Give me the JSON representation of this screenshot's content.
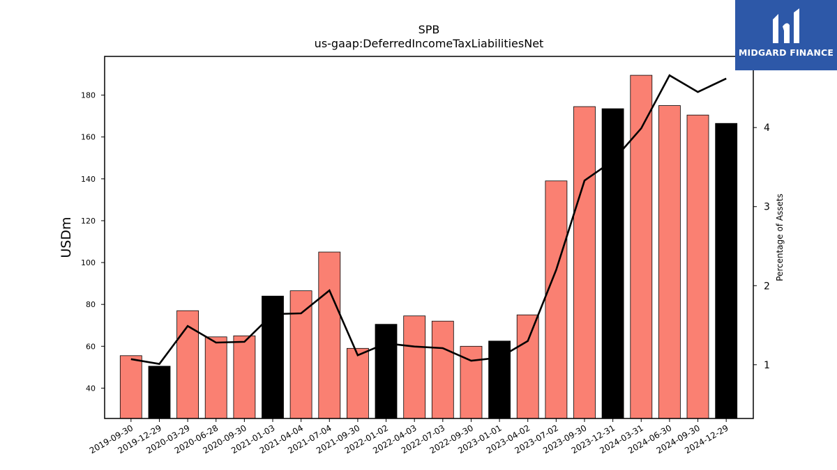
{
  "brand": {
    "name": "MIDGARD FINANCE",
    "color": "#2d58a8"
  },
  "chart_data": {
    "type": "bar",
    "title": "SPB",
    "subtitle": "us-gaap:DeferredIncomeTaxLiabilitiesNet",
    "ylabel": "USDm",
    "y2label": "Percentage of Assets",
    "ylim": [
      25.5,
      198.5
    ],
    "y2lim": [
      0.32,
      4.9
    ],
    "yticks": [
      40,
      60,
      80,
      100,
      120,
      140,
      160,
      180
    ],
    "y2ticks": [
      1,
      2,
      3,
      4
    ],
    "grid": false,
    "colors": {
      "default": "#fa8072",
      "highlight": "#000000",
      "line": "#000000"
    },
    "categories": [
      "2019-09-30",
      "2019-12-29",
      "2020-03-29",
      "2020-06-28",
      "2020-09-30",
      "2021-01-03",
      "2021-04-04",
      "2021-07-04",
      "2021-09-30",
      "2022-01-02",
      "2022-04-03",
      "2022-07-03",
      "2022-09-30",
      "2023-01-01",
      "2023-04-02",
      "2023-07-02",
      "2023-09-30",
      "2023-12-31",
      "2024-03-31",
      "2024-06-30",
      "2024-09-30",
      "2024-12-29"
    ],
    "values": [
      55.5,
      50.5,
      77,
      64.5,
      65,
      84,
      86.5,
      105,
      59,
      70.5,
      74.5,
      72,
      60,
      62.5,
      75,
      139,
      174.5,
      173.5,
      189.5,
      175,
      170.5,
      166.5
    ],
    "highlight": [
      false,
      true,
      false,
      false,
      false,
      true,
      false,
      false,
      false,
      true,
      false,
      false,
      false,
      true,
      false,
      false,
      false,
      true,
      false,
      false,
      false,
      true
    ],
    "line_values": [
      1.07,
      1.01,
      1.49,
      1.28,
      1.29,
      1.64,
      1.65,
      1.94,
      1.12,
      1.27,
      1.23,
      1.21,
      1.05,
      1.09,
      1.3,
      2.2,
      3.33,
      3.58,
      3.99,
      4.66,
      4.45,
      4.62
    ]
  }
}
